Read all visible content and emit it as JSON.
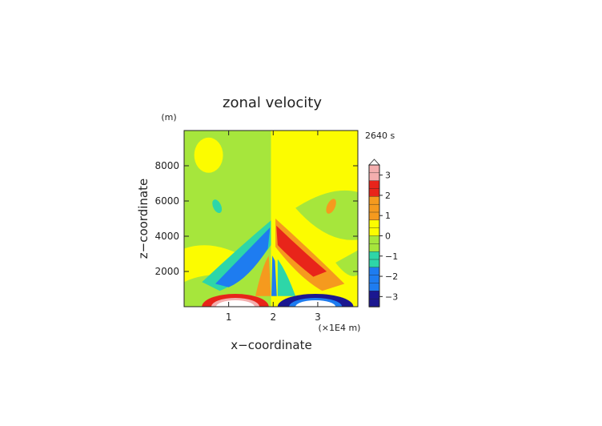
{
  "chart_data": {
    "type": "heatmap",
    "title": "zonal velocity",
    "time_label": "2640 s",
    "xlabel": "x−coordinate",
    "ylabel": "z−coordinate",
    "x_unit": "(×1E4 m)",
    "y_unit": "(m)",
    "xlim": [
      0,
      3.9
    ],
    "ylim": [
      0,
      10000
    ],
    "x_ticks": [
      1,
      2,
      3
    ],
    "y_ticks": [
      2000,
      4000,
      6000,
      8000
    ],
    "x_ticklabels": [
      "1",
      "2",
      "3"
    ],
    "y_ticklabels": [
      "2000",
      "4000",
      "6000",
      "8000"
    ],
    "colorbar": {
      "ticks": [
        3,
        2,
        1,
        0,
        -1,
        -2,
        -3
      ],
      "ticklabels": [
        "3",
        "2",
        "1",
        "0",
        "−1",
        "−2",
        "−3"
      ],
      "levels": [
        -3.5,
        3.5
      ],
      "extend_max": true
    },
    "colors": {
      "white_level": "#ffffff",
      "pink": "#f4aeae",
      "red": "#e8241a",
      "orange": "#f59a1e",
      "yellow": "#fcfc00",
      "light_green": "#a6e63c",
      "cyan_green": "#2ed6a8",
      "blue": "#1e7cf0",
      "navy": "#1b1790"
    },
    "features": [
      {
        "name": "surface_positive_lobe",
        "x": 1.1,
        "z": 80,
        "u": 3.5
      },
      {
        "name": "surface_negative_lobe",
        "x": 2.9,
        "z": 80,
        "u": -3.5
      },
      {
        "name": "left_tilted_negative_band",
        "x_range": [
          0.5,
          1.9
        ],
        "z_range": [
          500,
          4500
        ],
        "u": -2
      },
      {
        "name": "right_tilted_positive_band",
        "x_range": [
          2.1,
          3.5
        ],
        "z_range": [
          500,
          4500
        ],
        "u": 2
      },
      {
        "name": "left_upper_negative_spot",
        "x": 0.7,
        "z": 5500,
        "u": -1
      },
      {
        "name": "right_upper_positive_spot",
        "x": 3.3,
        "z": 5500,
        "u": 1
      }
    ]
  }
}
